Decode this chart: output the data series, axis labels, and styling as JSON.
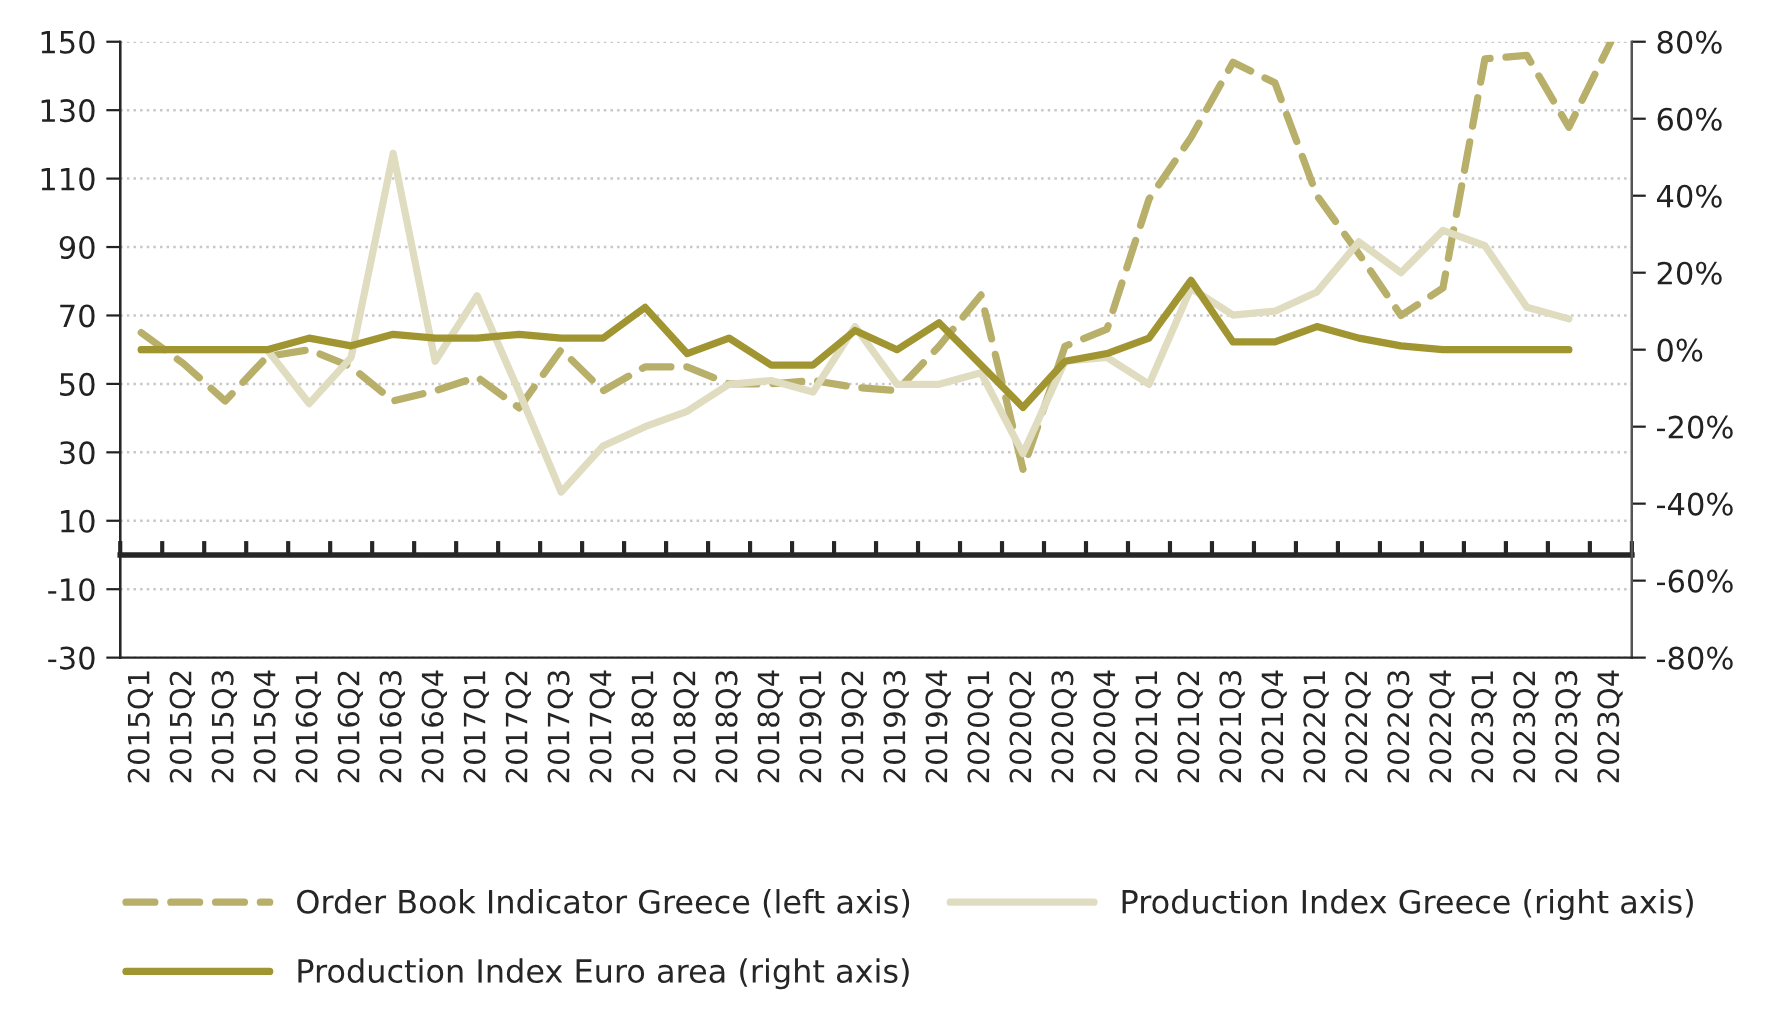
{
  "chart_data": {
    "type": "line",
    "categories": [
      "2015Q1",
      "2015Q2",
      "2015Q3",
      "2015Q4",
      "2016Q1",
      "2016Q2",
      "2016Q3",
      "2016Q4",
      "2017Q1",
      "2017Q2",
      "2017Q3",
      "2017Q4",
      "2018Q1",
      "2018Q2",
      "2018Q3",
      "2018Q4",
      "2019Q1",
      "2019Q2",
      "2019Q3",
      "2019Q4",
      "2020Q1",
      "2020Q2",
      "2020Q3",
      "2020Q4",
      "2021Q1",
      "2021Q2",
      "2021Q3",
      "2021Q4",
      "2022Q1",
      "2022Q2",
      "2022Q3",
      "2022Q4",
      "2023Q1",
      "2023Q2",
      "2023Q3",
      "2023Q4"
    ],
    "series": [
      {
        "name": "Order Book Indicator Greece (left axis)",
        "color": "#b8b06a",
        "line_style": "dashed",
        "values": [
          65,
          56,
          45,
          58,
          60,
          55,
          45,
          48,
          52,
          43,
          60,
          48,
          55,
          55,
          50,
          50,
          51,
          49,
          48,
          61,
          76,
          25,
          61,
          66,
          104,
          122,
          144,
          138,
          105,
          88,
          70,
          78,
          145,
          146,
          125,
          150
        ]
      },
      {
        "name": "Production Index Greece (right axis)",
        "color": "#e0dcc0",
        "axis": "y2",
        "line_style": "solid",
        "values": [
          0,
          0,
          0,
          0,
          -14,
          -2,
          51,
          -3,
          14,
          -11,
          -37,
          -25,
          -20,
          -16,
          -9,
          -8,
          -11,
          6,
          -9,
          -9,
          -6,
          -27,
          -3,
          -2,
          -9,
          16,
          9,
          10,
          15,
          28,
          20,
          31,
          27,
          11,
          8,
          null
        ]
      },
      {
        "name": "Production Index Euro area (right axis)",
        "color": "#a09530",
        "axis": "y2",
        "line_style": "solid",
        "values": [
          0,
          0,
          0,
          0,
          3,
          1,
          4,
          3,
          3,
          4,
          3,
          3,
          11,
          -1,
          3,
          -4,
          -4,
          5,
          0,
          7,
          -4,
          -15,
          -3,
          -1,
          3,
          18,
          2,
          2,
          6,
          3,
          1,
          0,
          0,
          0,
          0,
          null
        ]
      }
    ],
    "ylim": [
      -30,
      150
    ],
    "yticks": [
      -30,
      -10,
      10,
      30,
      50,
      70,
      90,
      110,
      130,
      150
    ],
    "y2lim": [
      -80,
      80
    ],
    "y2ticks": [
      {
        "value": -80,
        "label": "-80%"
      },
      {
        "value": -60,
        "label": "-60%"
      },
      {
        "value": -40,
        "label": "-40%"
      },
      {
        "value": -20,
        "label": "-20%"
      },
      {
        "value": 0,
        "label": "0%"
      },
      {
        "value": 20,
        "label": "20%"
      },
      {
        "value": 40,
        "label": "40%"
      },
      {
        "value": 60,
        "label": "60%"
      },
      {
        "value": 80,
        "label": "80%"
      }
    ],
    "grid": "y",
    "legend": "bottom",
    "marker": "none"
  }
}
